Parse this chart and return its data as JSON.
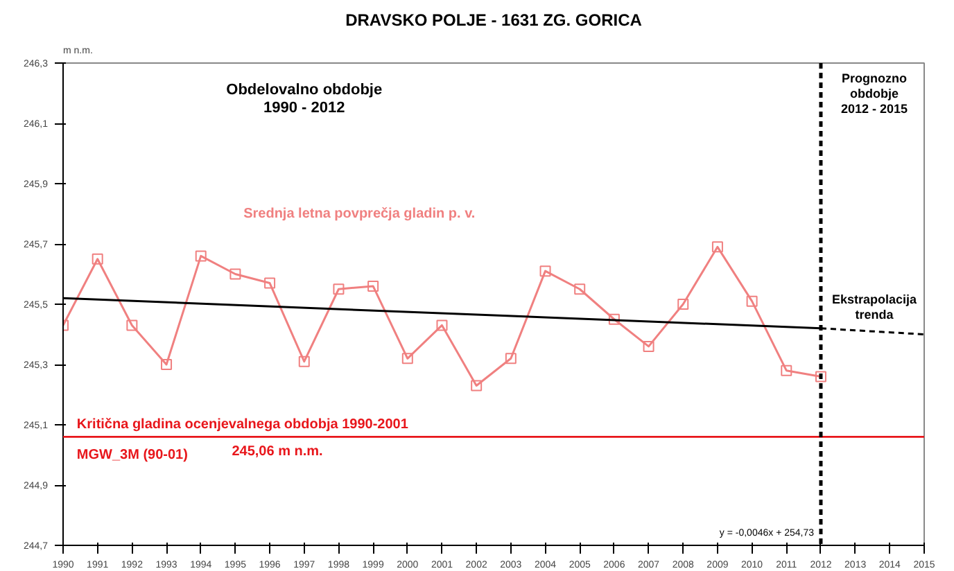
{
  "chart_data": {
    "type": "line",
    "title": "DRAVSKO POLJE - 1631 ZG. GORICA",
    "ylabel": "m n.m.",
    "x": [
      1990,
      1991,
      1992,
      1993,
      1994,
      1995,
      1996,
      1997,
      1998,
      1999,
      2000,
      2001,
      2002,
      2003,
      2004,
      2005,
      2006,
      2007,
      2008,
      2009,
      2010,
      2011,
      2012
    ],
    "series": [
      {
        "name": "Srednja letna povprečja gladin p. v.",
        "color": "#f08080",
        "marker": "square",
        "line_style": "solid",
        "values": [
          245.43,
          245.65,
          245.43,
          245.3,
          245.66,
          245.6,
          245.57,
          245.31,
          245.55,
          245.56,
          245.32,
          245.43,
          245.23,
          245.32,
          245.61,
          245.55,
          245.45,
          245.36,
          245.5,
          245.69,
          245.51,
          245.28,
          245.26
        ]
      },
      {
        "type": "line",
        "color": "#000000",
        "marker": "none",
        "line_style": "solid",
        "x": [
          1990,
          2012
        ],
        "values": [
          245.52,
          245.42
        ]
      },
      {
        "type": "line",
        "color": "#000000",
        "marker": "none",
        "line_style": "dashed",
        "x": [
          2012,
          2015
        ],
        "values": [
          245.42,
          245.4
        ]
      }
    ],
    "ref_lines": [
      {
        "axis": "y",
        "value": 245.06,
        "color": "#e8161b",
        "line_style": "solid"
      },
      {
        "axis": "x",
        "value": 2012,
        "color": "#000000",
        "line_style": "dashed"
      }
    ],
    "annotations": [
      "Obdelovalno obdobje\n1990 - 2012",
      "Prognozno\nobdobje\n2012 - 2015",
      "Ekstrapolacija\ntrenda",
      "Kritična gladina ocenjevalnega obdobja 1990-2001",
      "MGW_3M (90-01)",
      "245,06 m n.m.",
      "y = -0,0046x + 254,73"
    ],
    "xlim": [
      1990,
      2015
    ],
    "ylim": [
      244.7,
      246.3
    ],
    "xticks": [
      1990,
      1991,
      1992,
      1993,
      1994,
      1995,
      1996,
      1997,
      1998,
      1999,
      2000,
      2001,
      2002,
      2003,
      2004,
      2005,
      2006,
      2007,
      2008,
      2009,
      2010,
      2011,
      2012,
      2013,
      2014,
      2015
    ],
    "yticks": [
      {
        "value": 244.7,
        "label": "244,7"
      },
      {
        "value": 244.9,
        "label": "244,9"
      },
      {
        "value": 245.1,
        "label": "245,1"
      },
      {
        "value": 245.3,
        "label": "245,3"
      },
      {
        "value": 245.5,
        "label": "245,5"
      },
      {
        "value": 245.7,
        "label": "245,7"
      },
      {
        "value": 245.9,
        "label": "245,9"
      },
      {
        "value": 246.1,
        "label": "246,1"
      },
      {
        "value": 246.3,
        "label": "246,3"
      }
    ],
    "grid": false
  }
}
